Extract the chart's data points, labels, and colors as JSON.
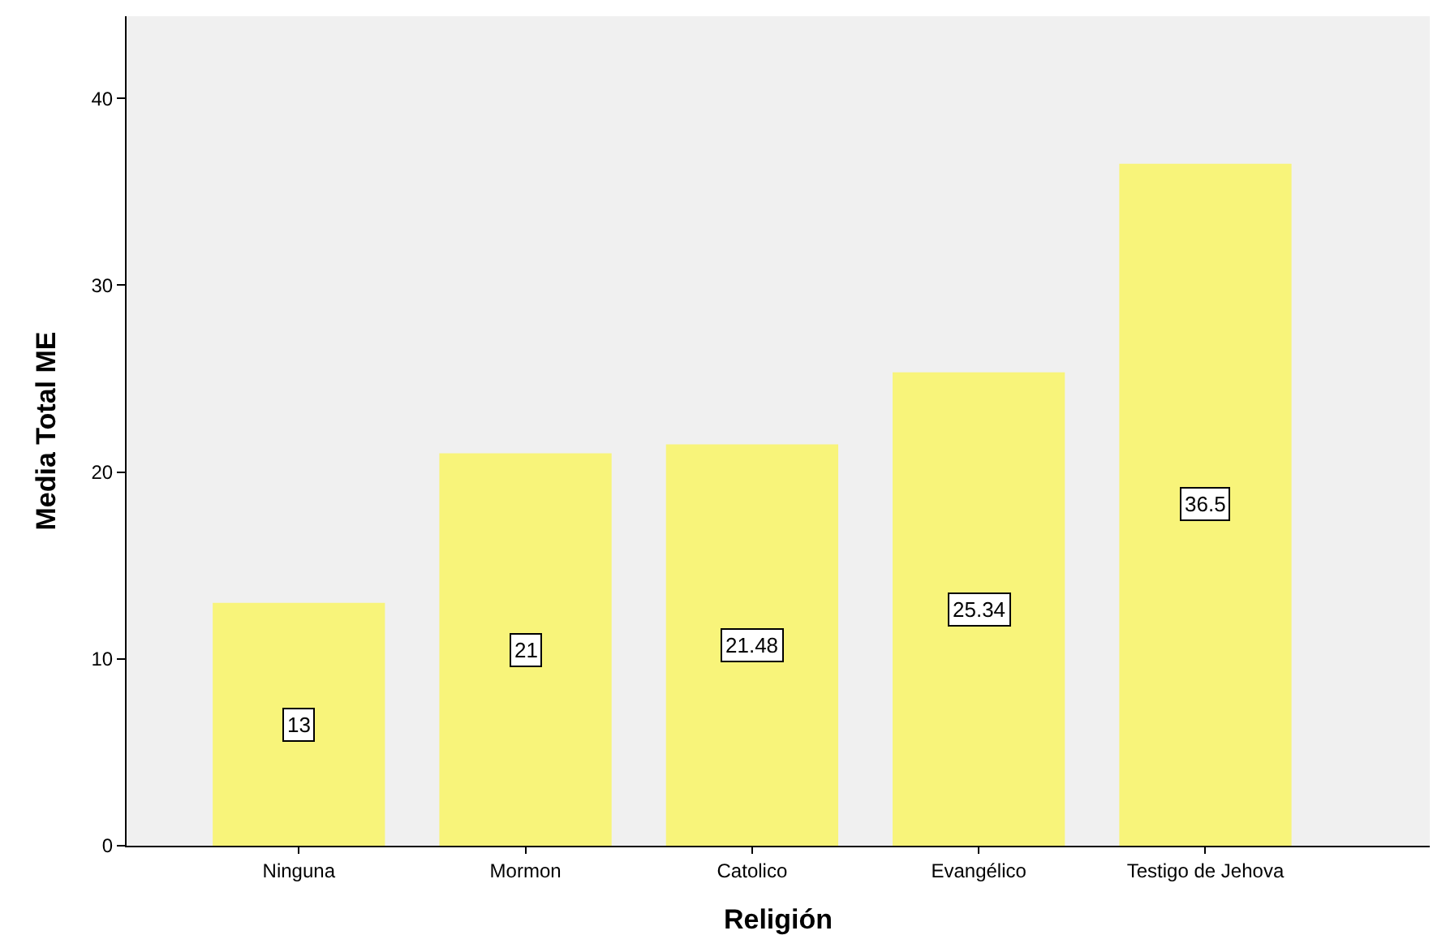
{
  "chart_data": {
    "type": "bar",
    "xlabel": "Religión",
    "ylabel": "Media Total ME",
    "categories": [
      "Ninguna",
      "Mormon",
      "Catolico",
      "Evangélico",
      "Testigo de Jehova"
    ],
    "values": [
      13,
      21,
      21.48,
      25.34,
      36.5
    ],
    "color": "#f8f47a",
    "ylim": [
      0,
      44.4
    ],
    "yticks": [
      0,
      10,
      20,
      30,
      40
    ],
    "grid": false,
    "data_labels": true
  }
}
